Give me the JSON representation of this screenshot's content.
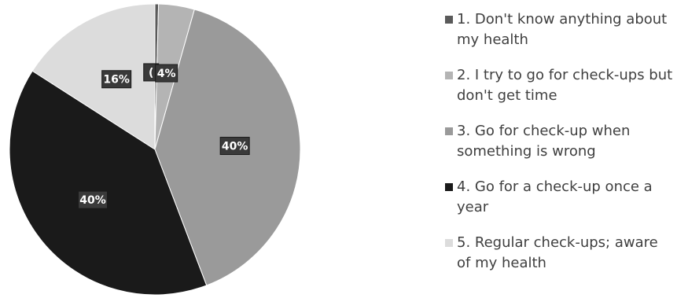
{
  "chart_data": {
    "type": "pie",
    "title": "",
    "categories": [
      "1. Don't know anything about my health",
      "2. I try to go for check-ups but don't get time",
      "3. Go for check-up when something is wrong",
      "4. Go for a check-up once a year",
      "5. Regular check-ups; aware of my health"
    ],
    "values": [
      0.4,
      4,
      40,
      40,
      16
    ],
    "data_labels": [
      "(",
      "4%",
      "40%",
      "40%",
      "16%"
    ],
    "colors": [
      "#5a5a5a",
      "#b4b4b4",
      "#9a9a9a",
      "#1a1a1a",
      "#dcdcdc"
    ],
    "legend_position": "right"
  }
}
